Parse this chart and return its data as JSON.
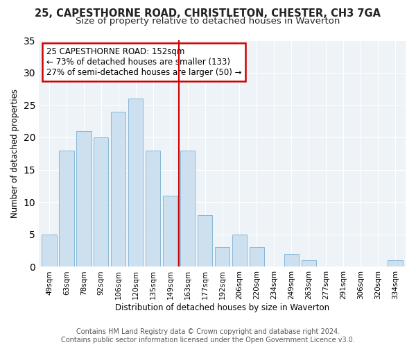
{
  "title": "25, CAPESTHORNE ROAD, CHRISTLETON, CHESTER, CH3 7GA",
  "subtitle": "Size of property relative to detached houses in Waverton",
  "xlabel": "Distribution of detached houses by size in Waverton",
  "ylabel": "Number of detached properties",
  "bar_labels": [
    "49sqm",
    "63sqm",
    "78sqm",
    "92sqm",
    "106sqm",
    "120sqm",
    "135sqm",
    "149sqm",
    "163sqm",
    "177sqm",
    "192sqm",
    "206sqm",
    "220sqm",
    "234sqm",
    "249sqm",
    "263sqm",
    "277sqm",
    "291sqm",
    "306sqm",
    "320sqm",
    "334sqm"
  ],
  "bar_values": [
    5,
    18,
    21,
    20,
    24,
    26,
    18,
    11,
    18,
    8,
    3,
    5,
    3,
    0,
    2,
    1,
    0,
    0,
    0,
    0,
    1
  ],
  "bar_color": "#cce0f0",
  "bar_edge_color": "#88b8d8",
  "vline_x": 7.5,
  "vline_color": "#cc0000",
  "annotation_title": "25 CAPESTHORNE ROAD: 152sqm",
  "annotation_line1": "← 73% of detached houses are smaller (133)",
  "annotation_line2": "27% of semi-detached houses are larger (50) →",
  "annotation_box_color": "#ffffff",
  "annotation_box_edge": "#cc0000",
  "ylim": [
    0,
    35
  ],
  "yticks": [
    0,
    5,
    10,
    15,
    20,
    25,
    30,
    35
  ],
  "footer_line1": "Contains HM Land Registry data © Crown copyright and database right 2024.",
  "footer_line2": "Contains public sector information licensed under the Open Government Licence v3.0.",
  "bg_color": "#ffffff",
  "plot_bg_color": "#eef3f8",
  "title_fontsize": 10.5,
  "subtitle_fontsize": 9.5,
  "footer_fontsize": 7,
  "annotation_fontsize": 8.5,
  "axis_label_fontsize": 8.5,
  "tick_fontsize": 7.5
}
